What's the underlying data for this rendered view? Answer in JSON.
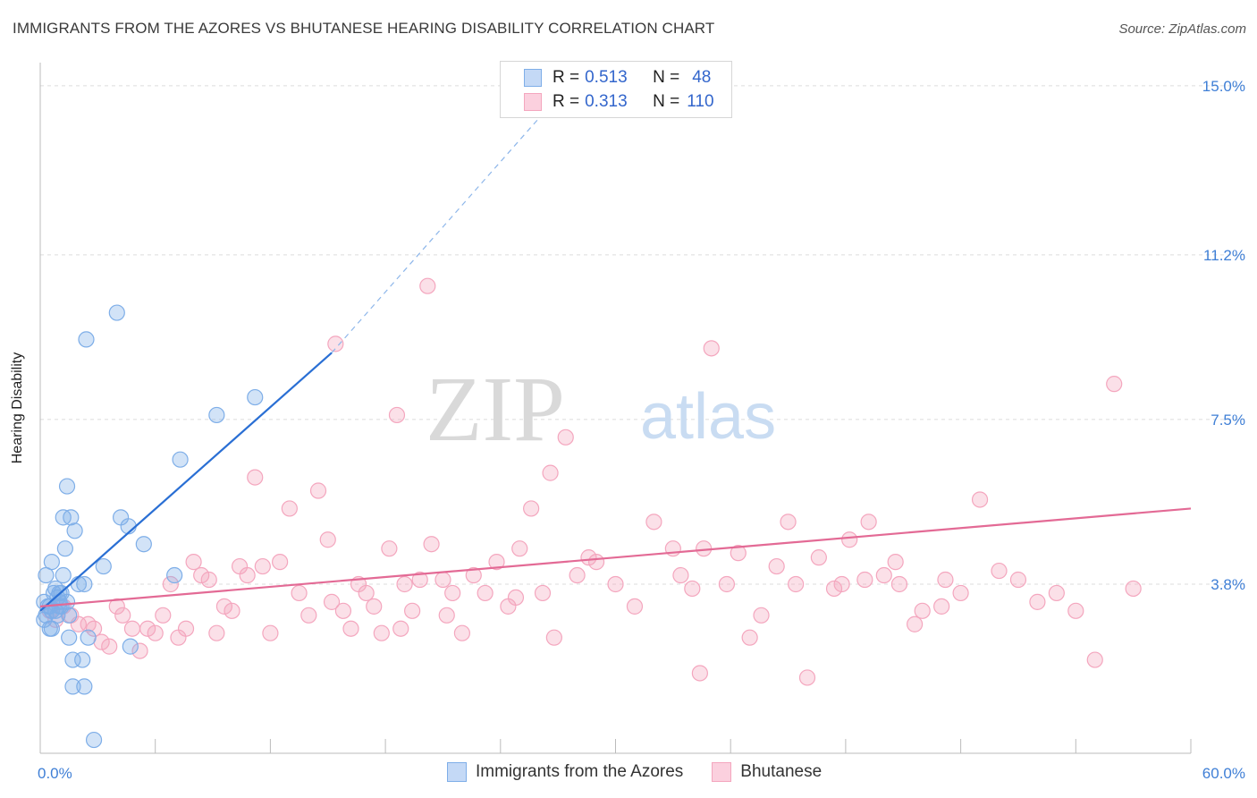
{
  "title": "IMMIGRANTS FROM THE AZORES VS BHUTANESE HEARING DISABILITY CORRELATION CHART",
  "source": "Source: ZipAtlas.com",
  "watermark": {
    "zip": "ZIP",
    "atlas": "atlas"
  },
  "legend": {
    "rows": [
      {
        "r_label": "R =",
        "r_value": "0.513",
        "n_label": "N =",
        "n_value": "48",
        "color": "#7eaee8"
      },
      {
        "r_label": "R =",
        "r_value": "0.313",
        "n_label": "N =",
        "n_value": "110",
        "color": "#f4a6be"
      }
    ]
  },
  "chart_data": {
    "type": "scatter",
    "ylabel": "Hearing Disability",
    "xlim": [
      0,
      60
    ],
    "ylim": [
      0,
      15.5
    ],
    "x_tick_labels": [
      "0.0%",
      "60.0%"
    ],
    "y_ticks": [
      3.8,
      7.5,
      11.2,
      15.0
    ],
    "y_tick_labels": [
      "3.8%",
      "7.5%",
      "11.2%",
      "15.0%"
    ],
    "grid": "horizontal dashed",
    "series": [
      {
        "name": "Immigrants from the Azores",
        "color": "#7eaee8",
        "line_color": "#2a6fd4",
        "trend": {
          "x0": 0.0,
          "y0": 3.2,
          "x1": 15.2,
          "y1": 9.0,
          "dash_to_x": 27.5,
          "dash_to_y": 15.0
        },
        "points": [
          [
            0.2,
            3.4
          ],
          [
            0.3,
            3.1
          ],
          [
            0.4,
            3.3
          ],
          [
            0.5,
            2.8
          ],
          [
            0.6,
            4.3
          ],
          [
            0.7,
            3.6
          ],
          [
            0.8,
            3.2
          ],
          [
            0.9,
            3.5
          ],
          [
            1.0,
            3.3
          ],
          [
            1.1,
            3.6
          ],
          [
            1.2,
            4.0
          ],
          [
            1.3,
            4.6
          ],
          [
            1.4,
            3.4
          ],
          [
            1.5,
            3.1
          ],
          [
            1.6,
            5.3
          ],
          [
            1.7,
            2.1
          ],
          [
            1.8,
            5.0
          ],
          [
            2.0,
            3.8
          ],
          [
            2.2,
            2.1
          ],
          [
            2.3,
            3.8
          ],
          [
            2.5,
            2.6
          ],
          [
            0.2,
            3.0
          ],
          [
            0.3,
            4.0
          ],
          [
            0.5,
            3.3
          ],
          [
            0.6,
            2.8
          ],
          [
            0.8,
            3.7
          ],
          [
            1.0,
            3.6
          ],
          [
            1.4,
            6.0
          ],
          [
            1.2,
            5.3
          ],
          [
            2.4,
            9.3
          ],
          [
            4.0,
            9.9
          ],
          [
            4.2,
            5.3
          ],
          [
            4.6,
            5.1
          ],
          [
            5.4,
            4.7
          ],
          [
            3.3,
            4.2
          ],
          [
            7.3,
            6.6
          ],
          [
            9.2,
            7.6
          ],
          [
            11.2,
            8.0
          ],
          [
            7.0,
            4.0
          ],
          [
            4.7,
            2.4
          ],
          [
            2.8,
            0.3
          ],
          [
            1.1,
            3.3
          ],
          [
            1.5,
            2.6
          ],
          [
            0.9,
            3.1
          ],
          [
            1.7,
            1.5
          ],
          [
            2.3,
            1.5
          ],
          [
            0.6,
            3.2
          ],
          [
            1.0,
            3.4
          ]
        ]
      },
      {
        "name": "Bhutanese",
        "color": "#f4a6be",
        "line_color": "#e36a95",
        "trend": {
          "x0": 0.0,
          "y0": 3.3,
          "x1": 60.0,
          "y1": 5.5
        },
        "points": [
          [
            0.5,
            3.2
          ],
          [
            0.8,
            3.0
          ],
          [
            1.2,
            3.3
          ],
          [
            1.6,
            3.1
          ],
          [
            2.0,
            2.9
          ],
          [
            2.5,
            2.9
          ],
          [
            2.8,
            2.8
          ],
          [
            3.2,
            2.5
          ],
          [
            3.6,
            2.4
          ],
          [
            4.0,
            3.3
          ],
          [
            4.3,
            3.1
          ],
          [
            4.8,
            2.8
          ],
          [
            5.2,
            2.3
          ],
          [
            5.6,
            2.8
          ],
          [
            6.0,
            2.7
          ],
          [
            6.4,
            3.1
          ],
          [
            6.8,
            3.8
          ],
          [
            7.2,
            2.6
          ],
          [
            7.6,
            2.8
          ],
          [
            8.0,
            4.3
          ],
          [
            8.4,
            4.0
          ],
          [
            8.8,
            3.9
          ],
          [
            9.2,
            2.7
          ],
          [
            9.6,
            3.3
          ],
          [
            10.0,
            3.2
          ],
          [
            10.4,
            4.2
          ],
          [
            10.8,
            4.0
          ],
          [
            11.2,
            6.2
          ],
          [
            11.6,
            4.2
          ],
          [
            12.0,
            2.7
          ],
          [
            12.5,
            4.3
          ],
          [
            13.0,
            5.5
          ],
          [
            13.5,
            3.6
          ],
          [
            14.0,
            3.1
          ],
          [
            14.5,
            5.9
          ],
          [
            15.0,
            4.8
          ],
          [
            15.4,
            9.2
          ],
          [
            15.8,
            3.2
          ],
          [
            16.2,
            2.8
          ],
          [
            16.6,
            3.8
          ],
          [
            17.0,
            3.6
          ],
          [
            17.4,
            3.3
          ],
          [
            17.8,
            2.7
          ],
          [
            18.2,
            4.6
          ],
          [
            18.6,
            7.6
          ],
          [
            19.0,
            3.8
          ],
          [
            19.4,
            3.2
          ],
          [
            19.8,
            3.9
          ],
          [
            20.4,
            4.7
          ],
          [
            21.0,
            3.9
          ],
          [
            21.5,
            3.6
          ],
          [
            22.0,
            2.7
          ],
          [
            22.6,
            4.0
          ],
          [
            23.2,
            3.6
          ],
          [
            23.8,
            4.3
          ],
          [
            24.4,
            3.3
          ],
          [
            25.0,
            4.6
          ],
          [
            25.6,
            5.5
          ],
          [
            26.2,
            3.6
          ],
          [
            26.8,
            2.6
          ],
          [
            27.4,
            7.1
          ],
          [
            28.0,
            4.0
          ],
          [
            29.0,
            4.3
          ],
          [
            30.0,
            3.8
          ],
          [
            31.0,
            3.3
          ],
          [
            32.0,
            5.2
          ],
          [
            33.0,
            4.6
          ],
          [
            33.4,
            4.0
          ],
          [
            34.0,
            3.7
          ],
          [
            34.4,
            1.8
          ],
          [
            35.0,
            9.1
          ],
          [
            35.8,
            3.8
          ],
          [
            36.4,
            4.5
          ],
          [
            37.0,
            2.6
          ],
          [
            37.6,
            3.1
          ],
          [
            38.4,
            4.2
          ],
          [
            39.0,
            5.2
          ],
          [
            39.4,
            3.8
          ],
          [
            40.0,
            1.7
          ],
          [
            40.6,
            4.4
          ],
          [
            41.4,
            3.7
          ],
          [
            41.8,
            3.8
          ],
          [
            42.2,
            4.8
          ],
          [
            43.0,
            3.9
          ],
          [
            43.2,
            5.2
          ],
          [
            44.0,
            4.0
          ],
          [
            44.8,
            3.8
          ],
          [
            45.6,
            2.9
          ],
          [
            46.0,
            3.2
          ],
          [
            47.0,
            3.3
          ],
          [
            48.0,
            3.6
          ],
          [
            49.0,
            5.7
          ],
          [
            50.0,
            4.1
          ],
          [
            51.0,
            3.9
          ],
          [
            52.0,
            3.4
          ],
          [
            53.0,
            3.6
          ],
          [
            54.0,
            3.2
          ],
          [
            55.0,
            2.1
          ],
          [
            56.0,
            8.3
          ],
          [
            57.0,
            3.7
          ],
          [
            26.6,
            6.3
          ],
          [
            20.2,
            10.5
          ],
          [
            24.8,
            3.5
          ],
          [
            28.6,
            4.4
          ],
          [
            21.2,
            3.1
          ],
          [
            34.6,
            4.6
          ],
          [
            44.6,
            4.3
          ],
          [
            47.2,
            3.9
          ],
          [
            18.8,
            2.8
          ],
          [
            15.2,
            3.4
          ]
        ]
      }
    ]
  }
}
